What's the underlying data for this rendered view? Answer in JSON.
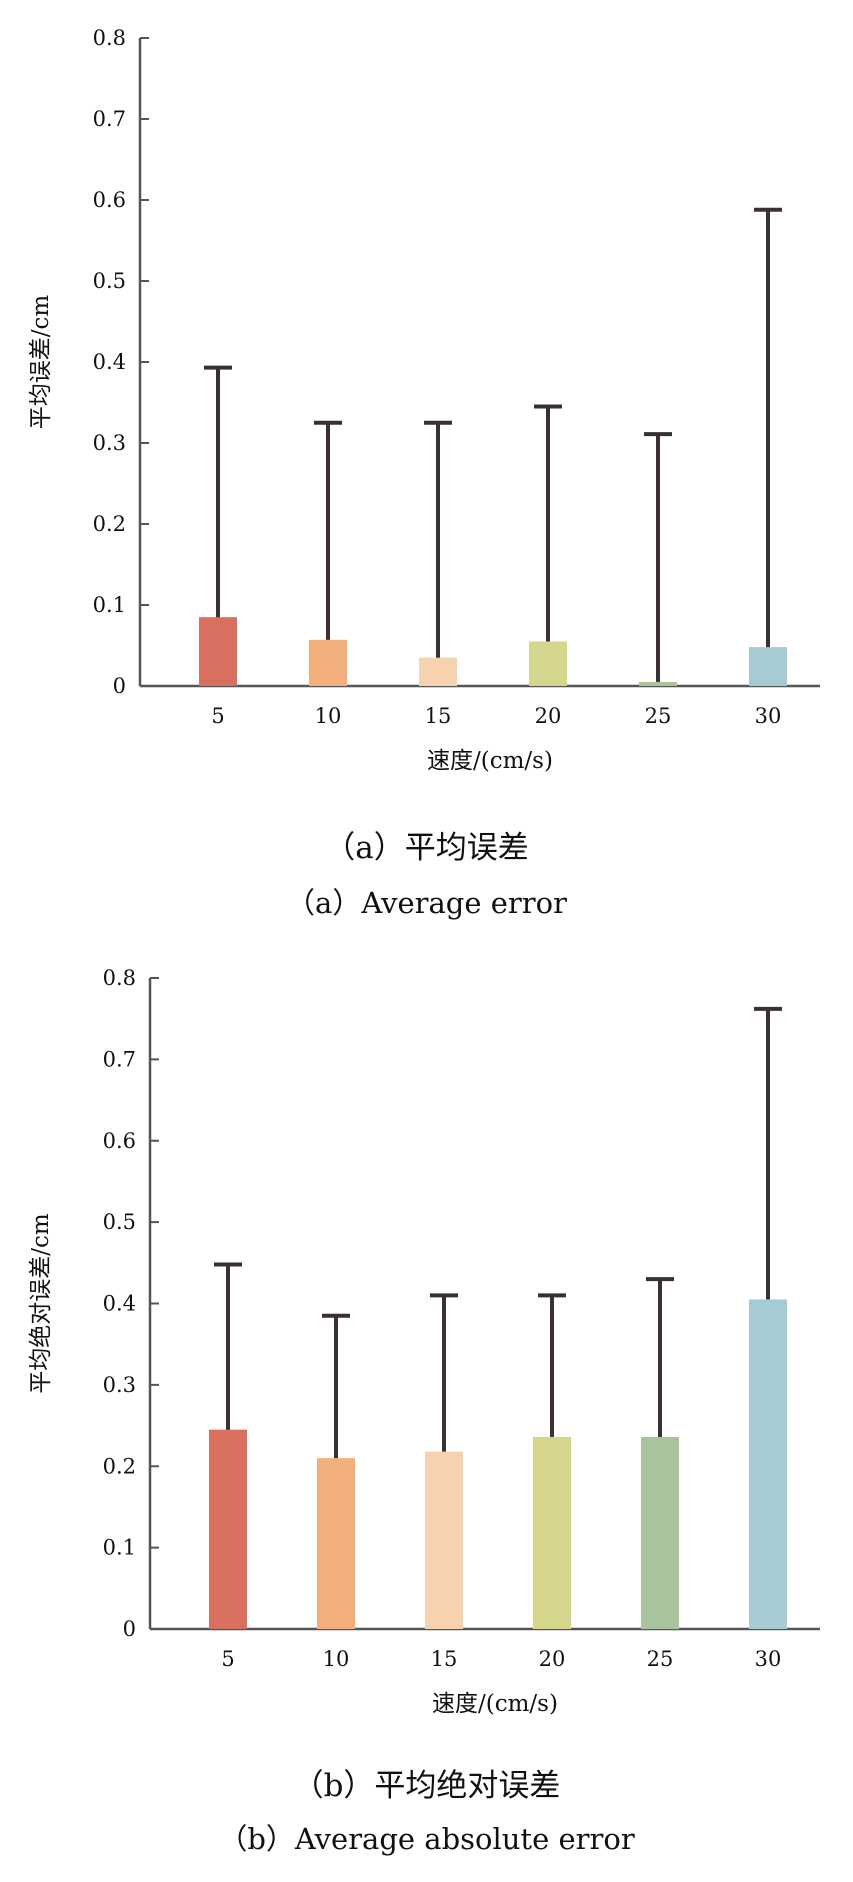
{
  "chart_data": [
    {
      "type": "bar",
      "xlabel": "速度/(cm/s)",
      "ylabel": "平均误差/cm",
      "categories": [
        "5",
        "10",
        "15",
        "20",
        "25",
        "30"
      ],
      "values": [
        0.085,
        0.057,
        0.035,
        0.055,
        0.005,
        0.048
      ],
      "error_upper": [
        0.393,
        0.325,
        0.325,
        0.345,
        0.311,
        0.588
      ],
      "ylim": [
        0,
        0.8
      ],
      "yticks": [
        "0",
        "0.1",
        "0.2",
        "0.3",
        "0.4",
        "0.5",
        "0.6",
        "0.7",
        "0.8"
      ],
      "colors": [
        "#D9705F",
        "#F3B07D",
        "#F7D2AE",
        "#D5D68C",
        "#A9C39D",
        "#A6CBD3"
      ],
      "error_bar_color": "#3a3030",
      "grid": false,
      "legend": "none",
      "caption_cn": "（a）平均误差",
      "caption_en": "（a）Average error"
    },
    {
      "type": "bar",
      "xlabel": "速度/(cm/s)",
      "ylabel": "平均绝对误差/cm",
      "categories": [
        "5",
        "10",
        "15",
        "20",
        "25",
        "30"
      ],
      "values": [
        0.245,
        0.21,
        0.218,
        0.236,
        0.236,
        0.405
      ],
      "error_upper": [
        0.448,
        0.385,
        0.41,
        0.41,
        0.43,
        0.762
      ],
      "ylim": [
        0,
        0.8
      ],
      "yticks": [
        "0",
        "0.1",
        "0.2",
        "0.3",
        "0.4",
        "0.5",
        "0.6",
        "0.7",
        "0.8"
      ],
      "colors": [
        "#D9705F",
        "#F3B07D",
        "#F7D2AE",
        "#D5D68C",
        "#A9C39D",
        "#A6CBD3"
      ],
      "error_bar_color": "#3a3030",
      "grid": false,
      "legend": "none",
      "caption_cn": "（b）平均绝对误差",
      "caption_en": "（b）Average absolute error"
    }
  ]
}
